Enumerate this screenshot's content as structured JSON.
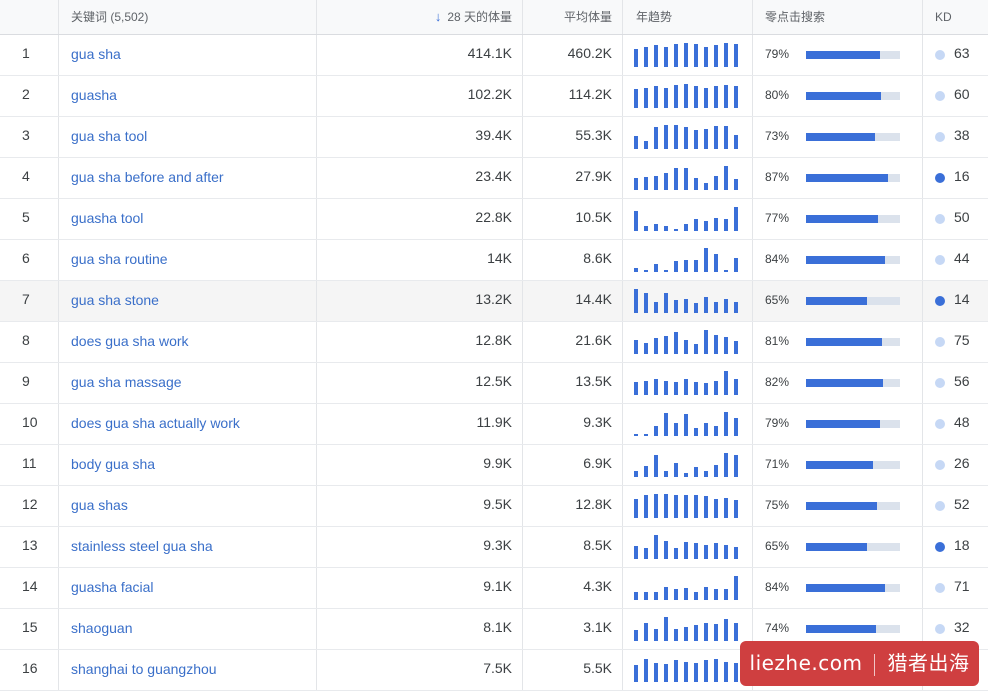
{
  "header": {
    "keyword": "关键词 (5,502)",
    "volume": "28 天的体量",
    "avg_volume": "平均体量",
    "trend": "年趋势",
    "zero_click": "零点击搜索",
    "kd": "KD",
    "sort_icon": "arrow-down-icon"
  },
  "colors": {
    "accent": "#3a6fd8",
    "link": "#3a6fc9",
    "kd_low": "#c6d8f5",
    "kd_high": "#3a6fd8"
  },
  "rows": [
    {
      "num": "1",
      "keyword": "gua sha",
      "volume": "414.1K",
      "avg": "460.2K",
      "trend": [
        0.75,
        0.85,
        0.9,
        0.85,
        0.95,
        1.0,
        0.95,
        0.85,
        0.9,
        1.0,
        0.95
      ],
      "zero_pct": "79%",
      "zero": 0.79,
      "kd": "63",
      "kd_level": "low"
    },
    {
      "num": "2",
      "keyword": "guasha",
      "volume": "102.2K",
      "avg": "114.2K",
      "trend": [
        0.8,
        0.85,
        0.9,
        0.85,
        0.95,
        1.0,
        0.9,
        0.85,
        0.9,
        0.95,
        0.9
      ],
      "zero_pct": "80%",
      "zero": 0.8,
      "kd": "60",
      "kd_level": "low"
    },
    {
      "num": "3",
      "keyword": "gua sha tool",
      "volume": "39.4K",
      "avg": "55.3K",
      "trend": [
        0.55,
        0.35,
        0.9,
        1.0,
        1.0,
        0.9,
        0.8,
        0.85,
        0.95,
        0.95,
        0.6
      ],
      "zero_pct": "73%",
      "zero": 0.73,
      "kd": "38",
      "kd_level": "low"
    },
    {
      "num": "4",
      "keyword": "gua sha before and after",
      "volume": "23.4K",
      "avg": "27.9K",
      "trend": [
        0.5,
        0.55,
        0.6,
        0.7,
        0.9,
        0.9,
        0.5,
        0.3,
        0.6,
        1.0,
        0.45
      ],
      "zero_pct": "87%",
      "zero": 0.87,
      "kd": "16",
      "kd_level": "high"
    },
    {
      "num": "5",
      "keyword": "guasha tool",
      "volume": "22.8K",
      "avg": "10.5K",
      "trend": [
        0.85,
        0.2,
        0.3,
        0.2,
        0.1,
        0.3,
        0.5,
        0.4,
        0.55,
        0.5,
        1.0
      ],
      "zero_pct": "77%",
      "zero": 0.77,
      "kd": "50",
      "kd_level": "low"
    },
    {
      "num": "6",
      "keyword": "gua sha routine",
      "volume": "14K",
      "avg": "8.6K",
      "trend": [
        0.15,
        0.05,
        0.35,
        0.1,
        0.45,
        0.5,
        0.5,
        1.0,
        0.75,
        0.05,
        0.6
      ],
      "zero_pct": "84%",
      "zero": 0.84,
      "kd": "44",
      "kd_level": "low"
    },
    {
      "num": "7",
      "keyword": "gua sha stone",
      "volume": "13.2K",
      "avg": "14.4K",
      "trend": [
        1.0,
        0.85,
        0.45,
        0.85,
        0.55,
        0.6,
        0.4,
        0.65,
        0.45,
        0.6,
        0.45
      ],
      "zero_pct": "65%",
      "zero": 0.65,
      "kd": "14",
      "kd_level": "high"
    },
    {
      "num": "8",
      "keyword": "does gua sha work",
      "volume": "12.8K",
      "avg": "21.6K",
      "trend": [
        0.6,
        0.45,
        0.65,
        0.75,
        0.9,
        0.6,
        0.4,
        1.0,
        0.8,
        0.7,
        0.55
      ],
      "zero_pct": "81%",
      "zero": 0.81,
      "kd": "75",
      "kd_level": "low"
    },
    {
      "num": "9",
      "keyword": "gua sha massage",
      "volume": "12.5K",
      "avg": "13.5K",
      "trend": [
        0.55,
        0.6,
        0.65,
        0.6,
        0.55,
        0.65,
        0.55,
        0.5,
        0.6,
        1.0,
        0.65
      ],
      "zero_pct": "82%",
      "zero": 0.82,
      "kd": "56",
      "kd_level": "low"
    },
    {
      "num": "10",
      "keyword": "does gua sha actually work",
      "volume": "11.9K",
      "avg": "9.3K",
      "trend": [
        0.05,
        0.1,
        0.4,
        0.95,
        0.55,
        0.9,
        0.35,
        0.55,
        0.4,
        1.0,
        0.75
      ],
      "zero_pct": "79%",
      "zero": 0.79,
      "kd": "48",
      "kd_level": "low"
    },
    {
      "num": "11",
      "keyword": "body gua sha",
      "volume": "9.9K",
      "avg": "6.9K",
      "trend": [
        0.25,
        0.45,
        0.9,
        0.25,
        0.6,
        0.15,
        0.4,
        0.25,
        0.5,
        1.0,
        0.9
      ],
      "zero_pct": "71%",
      "zero": 0.71,
      "kd": "26",
      "kd_level": "low"
    },
    {
      "num": "12",
      "keyword": "gua shas",
      "volume": "9.5K",
      "avg": "12.8K",
      "trend": [
        0.8,
        0.95,
        1.0,
        1.0,
        0.95,
        0.95,
        0.95,
        0.9,
        0.8,
        0.85,
        0.75
      ],
      "zero_pct": "75%",
      "zero": 0.75,
      "kd": "52",
      "kd_level": "low"
    },
    {
      "num": "13",
      "keyword": "stainless steel gua sha",
      "volume": "9.3K",
      "avg": "8.5K",
      "trend": [
        0.55,
        0.45,
        1.0,
        0.75,
        0.45,
        0.7,
        0.65,
        0.6,
        0.65,
        0.6,
        0.5
      ],
      "zero_pct": "65%",
      "zero": 0.65,
      "kd": "18",
      "kd_level": "high"
    },
    {
      "num": "14",
      "keyword": "guasha facial",
      "volume": "9.1K",
      "avg": "4.3K",
      "trend": [
        0.35,
        0.35,
        0.35,
        0.55,
        0.45,
        0.5,
        0.35,
        0.55,
        0.45,
        0.45,
        1.0
      ],
      "zero_pct": "84%",
      "zero": 0.84,
      "kd": "71",
      "kd_level": "low"
    },
    {
      "num": "15",
      "keyword": "shaoguan",
      "volume": "8.1K",
      "avg": "3.1K",
      "trend": [
        0.45,
        0.75,
        0.5,
        1.0,
        0.5,
        0.6,
        0.65,
        0.75,
        0.7,
        0.9,
        0.75
      ],
      "zero_pct": "74%",
      "zero": 0.74,
      "kd": "32",
      "kd_level": "low"
    },
    {
      "num": "16",
      "keyword": "shanghai to guangzhou",
      "volume": "7.5K",
      "avg": "5.5K",
      "trend": [
        0.7,
        0.95,
        0.8,
        0.75,
        0.9,
        0.85,
        0.8,
        0.9,
        0.95,
        0.85,
        0.8
      ],
      "zero_pct": "",
      "zero": 0.75,
      "kd": "",
      "kd_level": "low"
    }
  ],
  "watermark": {
    "left": "liezhe.com",
    "right": "猎者出海"
  }
}
